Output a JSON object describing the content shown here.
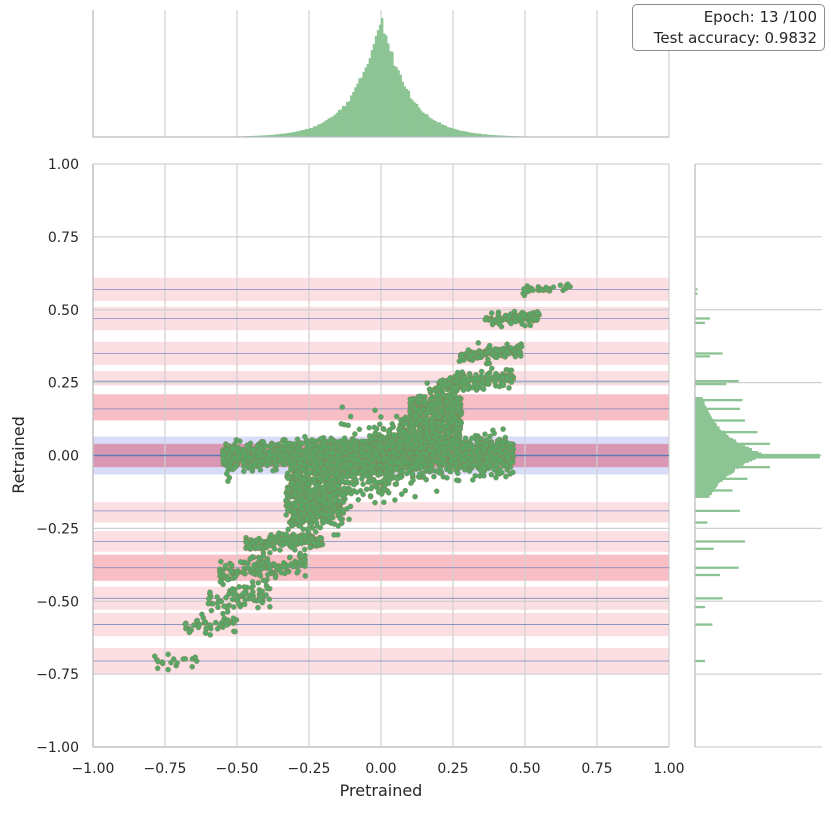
{
  "annotation": {
    "epoch_text": "Epoch: 13 /100",
    "accuracy_text": "Test accuracy: 0.9832"
  },
  "colors": {
    "points": "#55a868",
    "hist": "#8cc494",
    "grid": "#d0d0d0",
    "band_red_light": "#f8c9cf",
    "band_red_strong": "#f5a3ae",
    "band_blue": "#c9cdf5",
    "band_center": "#d98ba8",
    "center_line": "#4c72b0",
    "pair_line": "#6b7fb8"
  },
  "chart_data": [
    {
      "type": "scatter",
      "title": "",
      "xlabel": "Pretrained",
      "ylabel": "Retrained",
      "xlim": [
        -1.0,
        1.0
      ],
      "ylim": [
        -1.0,
        1.0
      ],
      "grid": true,
      "x_ticks": [
        "−1.00",
        "−0.75",
        "−0.50",
        "−0.25",
        "0.00",
        "0.25",
        "0.50",
        "0.75",
        "1.00"
      ],
      "x_tick_values": [
        -1.0,
        -0.75,
        -0.5,
        -0.25,
        0.0,
        0.25,
        0.5,
        0.75,
        1.0
      ],
      "y_ticks": [
        "1.00",
        "0.75",
        "0.50",
        "0.25",
        "0.00",
        "−0.25",
        "−0.50",
        "−0.75",
        "−1.00"
      ],
      "y_tick_values": [
        1.0,
        0.75,
        0.5,
        0.25,
        0.0,
        -0.25,
        -0.5,
        -0.75,
        -1.0
      ],
      "quantization_levels": [
        0.57,
        0.47,
        0.35,
        0.255,
        0.16,
        0.0,
        -0.19,
        -0.295,
        -0.385,
        -0.49,
        -0.58,
        -0.705
      ],
      "bands": [
        {
          "y0": 0.53,
          "y1": 0.61,
          "strength": "light"
        },
        {
          "y0": 0.43,
          "y1": 0.51,
          "strength": "light"
        },
        {
          "y0": 0.31,
          "y1": 0.39,
          "strength": "light"
        },
        {
          "y0": 0.24,
          "y1": 0.29,
          "strength": "light"
        },
        {
          "y0": 0.12,
          "y1": 0.21,
          "strength": "strong"
        },
        {
          "y0": -0.065,
          "y1": 0.065,
          "strength": "blue"
        },
        {
          "y0": -0.04,
          "y1": 0.04,
          "strength": "center"
        },
        {
          "y0": -0.23,
          "y1": -0.16,
          "strength": "light"
        },
        {
          "y0": -0.33,
          "y1": -0.26,
          "strength": "light"
        },
        {
          "y0": -0.43,
          "y1": -0.34,
          "strength": "strong"
        },
        {
          "y0": -0.53,
          "y1": -0.45,
          "strength": "light"
        },
        {
          "y0": -0.62,
          "y1": -0.54,
          "strength": "light"
        },
        {
          "y0": -0.75,
          "y1": -0.66,
          "strength": "light"
        }
      ],
      "clusters": [
        {
          "x_range": [
            -0.02,
            0.46
          ],
          "y": 0.0,
          "slope": 0.02,
          "y_spread": 0.03,
          "count": 900
        },
        {
          "x_range": [
            -0.55,
            0.0
          ],
          "y": 0.0,
          "slope": 0.02,
          "y_spread": 0.025,
          "count": 700
        },
        {
          "x_range": [
            0.0,
            0.28
          ],
          "y": 0.05,
          "slope": 0.5,
          "y_spread": 0.06,
          "count": 700
        },
        {
          "x_range": [
            -0.33,
            0.0
          ],
          "y": -0.06,
          "slope": 0.4,
          "y_spread": 0.06,
          "count": 650
        },
        {
          "x_range": [
            0.1,
            0.27
          ],
          "y": 0.16,
          "slope": 0.15,
          "y_spread": 0.03,
          "count": 260
        },
        {
          "x_range": [
            -0.31,
            -0.13
          ],
          "y": -0.19,
          "slope": 0.15,
          "y_spread": 0.03,
          "count": 240
        },
        {
          "x_range": [
            0.2,
            0.46
          ],
          "y": 0.255,
          "slope": 0.1,
          "y_spread": 0.015,
          "count": 180
        },
        {
          "x_range": [
            -0.47,
            -0.2
          ],
          "y": -0.295,
          "slope": 0.05,
          "y_spread": 0.012,
          "count": 170
        },
        {
          "x_range": [
            0.27,
            0.49
          ],
          "y": 0.35,
          "slope": 0.08,
          "y_spread": 0.012,
          "count": 140
        },
        {
          "x_range": [
            -0.56,
            -0.26
          ],
          "y": -0.385,
          "slope": 0.12,
          "y_spread": 0.02,
          "count": 160
        },
        {
          "x_range": [
            0.36,
            0.55
          ],
          "y": 0.47,
          "slope": 0.07,
          "y_spread": 0.012,
          "count": 90
        },
        {
          "x_range": [
            -0.6,
            -0.38
          ],
          "y": -0.49,
          "slope": 0.1,
          "y_spread": 0.02,
          "count": 80
        },
        {
          "x_range": [
            0.49,
            0.68
          ],
          "y": 0.57,
          "slope": 0.06,
          "y_spread": 0.008,
          "count": 30
        },
        {
          "x_range": [
            -0.68,
            -0.5
          ],
          "y": -0.58,
          "slope": 0.1,
          "y_spread": 0.015,
          "count": 45
        },
        {
          "x_range": [
            -0.79,
            -0.64
          ],
          "y": -0.705,
          "slope": 0.1,
          "y_spread": 0.01,
          "count": 18
        }
      ]
    },
    {
      "type": "histogram",
      "axis": "x",
      "variable": "Pretrained",
      "center": 0.0,
      "peak_density": 1.0,
      "distribution": "laplace-like",
      "scale": 0.08,
      "bins": 280
    },
    {
      "type": "histogram",
      "axis": "y",
      "variable": "Retrained",
      "bins": [
        {
          "y": 0.57,
          "count": 0.02
        },
        {
          "y": 0.555,
          "count": 0.02
        },
        {
          "y": 0.47,
          "count": 0.12
        },
        {
          "y": 0.455,
          "count": 0.08
        },
        {
          "y": 0.35,
          "count": 0.22
        },
        {
          "y": 0.34,
          "count": 0.12
        },
        {
          "y": 0.255,
          "count": 0.35
        },
        {
          "y": 0.245,
          "count": 0.25
        },
        {
          "y": 0.19,
          "count": 0.38
        },
        {
          "y": 0.16,
          "count": 0.36
        },
        {
          "y": 0.12,
          "count": 0.4
        },
        {
          "y": 0.08,
          "count": 0.5
        },
        {
          "y": 0.04,
          "count": 0.6
        },
        {
          "y": 0.0,
          "count": 1.0
        },
        {
          "y": -0.04,
          "count": 0.6
        },
        {
          "y": -0.08,
          "count": 0.42
        },
        {
          "y": -0.12,
          "count": 0.3
        },
        {
          "y": -0.19,
          "count": 0.36
        },
        {
          "y": -0.23,
          "count": 0.1
        },
        {
          "y": -0.295,
          "count": 0.4
        },
        {
          "y": -0.32,
          "count": 0.15
        },
        {
          "y": -0.385,
          "count": 0.35
        },
        {
          "y": -0.41,
          "count": 0.2
        },
        {
          "y": -0.49,
          "count": 0.22
        },
        {
          "y": -0.52,
          "count": 0.08
        },
        {
          "y": -0.58,
          "count": 0.14
        },
        {
          "y": -0.705,
          "count": 0.08
        }
      ]
    }
  ]
}
